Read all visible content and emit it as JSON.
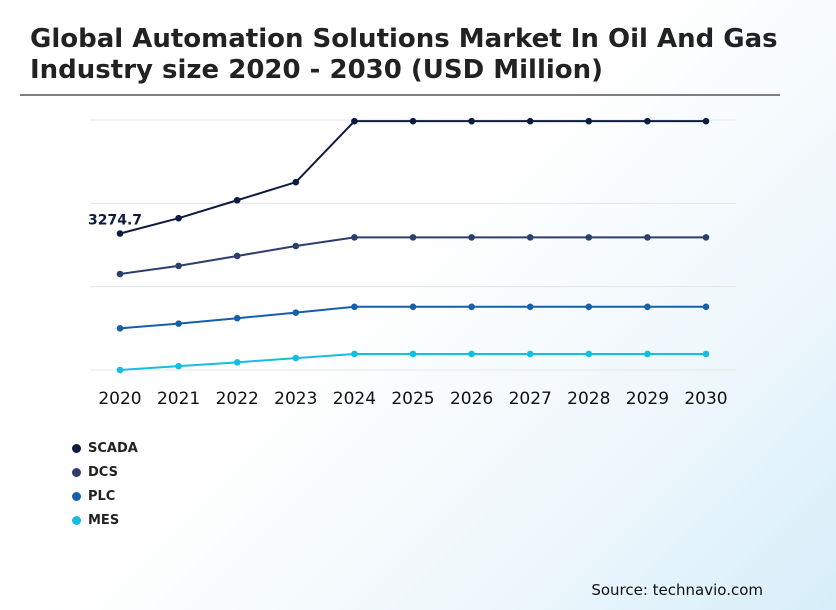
{
  "title_line1": "Global Automation Solutions Market In Oil And Gas",
  "title_line2": "Industry size 2020 - 2030 (USD Million)",
  "source": "Source: technavio.com",
  "chart_data": {
    "type": "line",
    "categories": [
      "2020",
      "2021",
      "2022",
      "2023",
      "2024",
      "2025",
      "2026",
      "2027",
      "2028",
      "2029",
      "2030"
    ],
    "ylim": [
      0,
      6000
    ],
    "grid": true,
    "legend_position": "bottom-left",
    "annotations": [
      {
        "series": "SCADA",
        "x": "2020",
        "label": "3274.7"
      }
    ],
    "series": [
      {
        "name": "SCADA",
        "color": "#0d1b3e",
        "values": [
          3274.7,
          3643,
          4074,
          4508,
          5972,
          5972,
          5972,
          5972,
          5972,
          5972,
          5972
        ]
      },
      {
        "name": "DCS",
        "color": "#2c3e6b",
        "values": [
          2304,
          2499,
          2737,
          2976,
          3183,
          3183,
          3183,
          3183,
          3183,
          3183,
          3183
        ]
      },
      {
        "name": "PLC",
        "color": "#1560a8",
        "values": [
          1000,
          1113,
          1243,
          1377,
          1517,
          1517,
          1517,
          1517,
          1517,
          1517,
          1517
        ]
      },
      {
        "name": "MES",
        "color": "#17bde0",
        "values": [
          0,
          93,
          184,
          286,
          385,
          385,
          385,
          385,
          385,
          385,
          385
        ]
      }
    ]
  }
}
